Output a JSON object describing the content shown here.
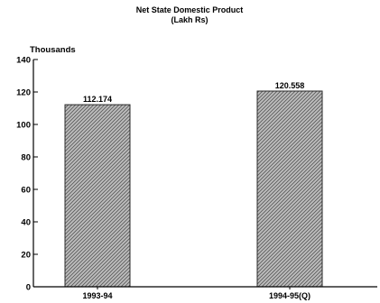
{
  "chart_data": {
    "type": "bar",
    "title": "Net State Domestic Product",
    "subtitle": "(Lakh Rs)",
    "ylabel": "Thousands",
    "xlabel": "",
    "categories": [
      "1993-94",
      "1994-95(Q)"
    ],
    "values": [
      112.174,
      120.558
    ],
    "data_labels": [
      "112.174",
      "120.558"
    ],
    "ylim": [
      0,
      140
    ],
    "yticks": [
      0,
      20,
      40,
      60,
      80,
      100,
      120,
      140
    ],
    "grid": false,
    "legend": "none",
    "bar_fill": "hatched-gray"
  },
  "colors": {
    "bar_base": "#bdbdbd",
    "hatch": "#5a5a5a",
    "axis": "#000000",
    "text": "#000000"
  }
}
